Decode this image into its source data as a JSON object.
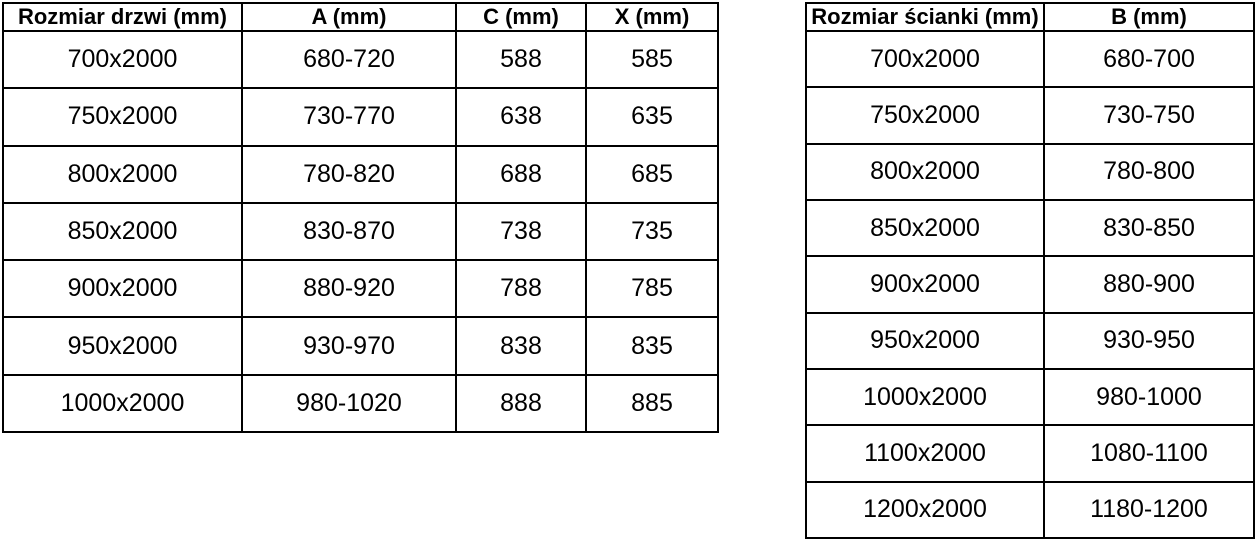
{
  "colors": {
    "background": "#ffffff",
    "border": "#000000",
    "text": "#000000"
  },
  "tables": {
    "doors": {
      "headers": [
        "Rozmiar drzwi (mm)",
        "A (mm)",
        "C (mm)",
        "X (mm)"
      ],
      "rows": [
        [
          "700x2000",
          "680-720",
          "588",
          "585"
        ],
        [
          "750x2000",
          "730-770",
          "638",
          "635"
        ],
        [
          "800x2000",
          "780-820",
          "688",
          "685"
        ],
        [
          "850x2000",
          "830-870",
          "738",
          "735"
        ],
        [
          "900x2000",
          "880-920",
          "788",
          "785"
        ],
        [
          "950x2000",
          "930-970",
          "838",
          "835"
        ],
        [
          "1000x2000",
          "980-1020",
          "888",
          "885"
        ]
      ]
    },
    "walls": {
      "headers": [
        "Rozmiar ścianki (mm)",
        "B (mm)"
      ],
      "rows": [
        [
          "700x2000",
          "680-700"
        ],
        [
          "750x2000",
          "730-750"
        ],
        [
          "800x2000",
          "780-800"
        ],
        [
          "850x2000",
          "830-850"
        ],
        [
          "900x2000",
          "880-900"
        ],
        [
          "950x2000",
          "930-950"
        ],
        [
          "1000x2000",
          "980-1000"
        ],
        [
          "1100x2000",
          "1080-1100"
        ],
        [
          "1200x2000",
          "1180-1200"
        ]
      ]
    }
  }
}
